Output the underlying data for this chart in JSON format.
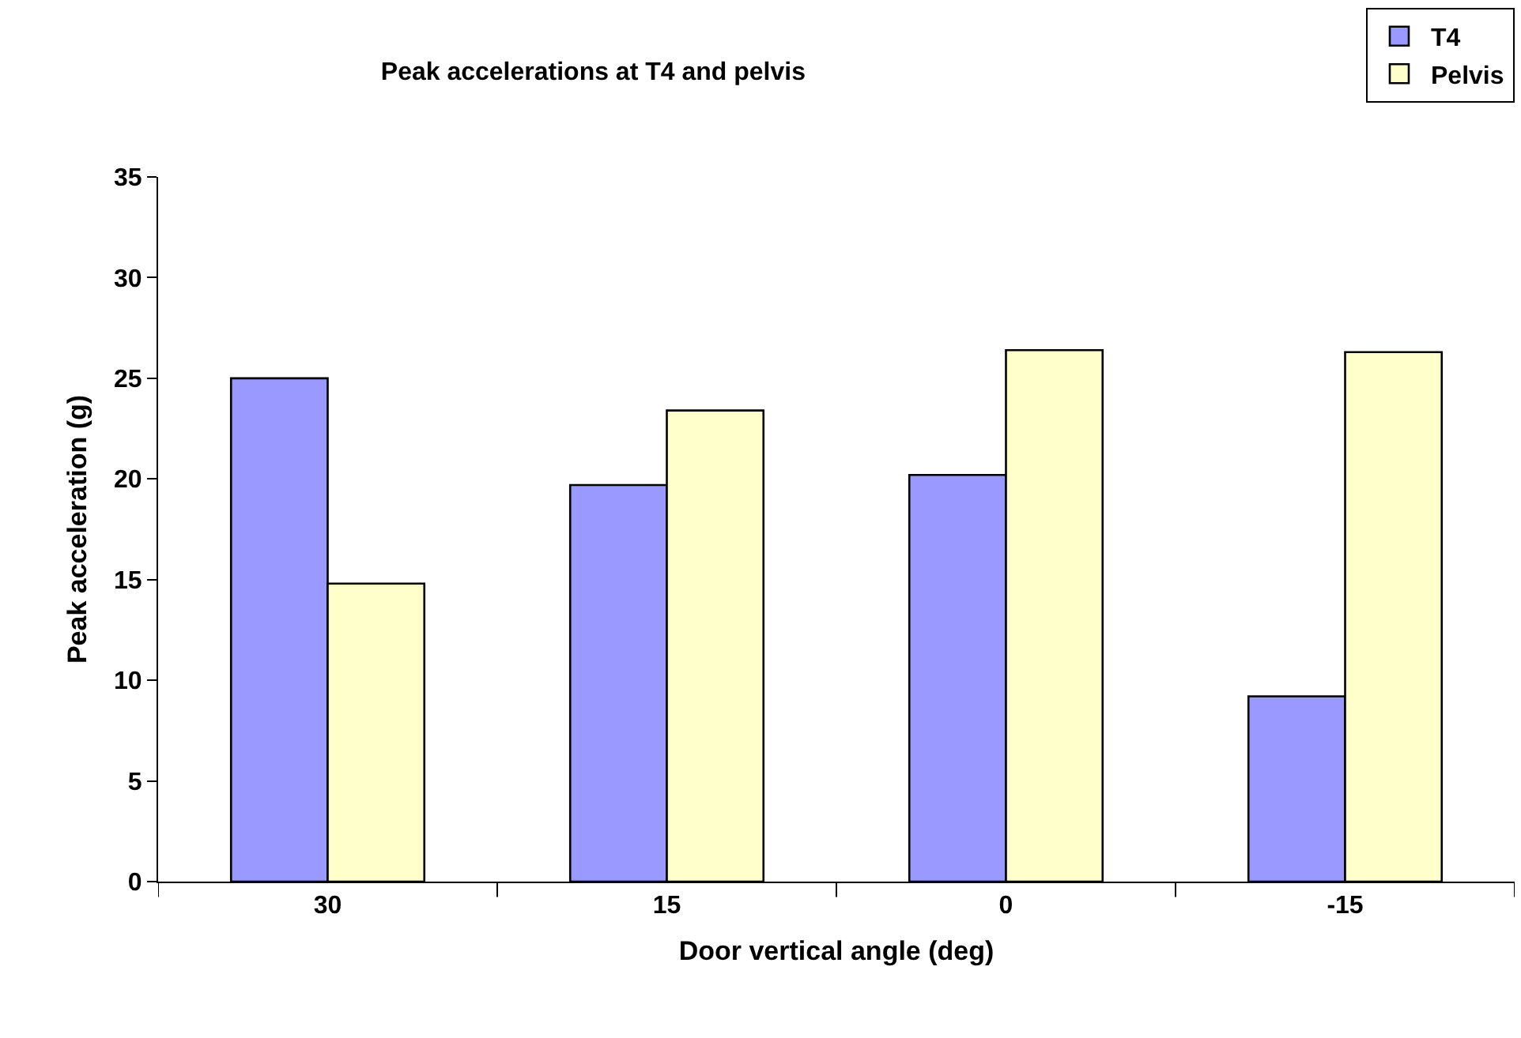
{
  "chart_data": {
    "type": "bar",
    "title": "Peak accelerations at T4 and pelvis",
    "xlabel": "Door vertical angle (deg)",
    "ylabel": "Peak acceleration (g)",
    "categories": [
      "30",
      "15",
      "0",
      "-15"
    ],
    "series": [
      {
        "name": "T4",
        "color": "#9999ff",
        "values": [
          25.0,
          19.7,
          20.2,
          9.2
        ]
      },
      {
        "name": "Pelvis",
        "color": "#ffffcc",
        "values": [
          14.8,
          23.4,
          26.4,
          26.3
        ]
      }
    ],
    "ylim": [
      0,
      35
    ],
    "yticks": [
      0,
      5,
      10,
      15,
      20,
      25,
      30,
      35
    ],
    "grid": false,
    "legend": "top right"
  }
}
